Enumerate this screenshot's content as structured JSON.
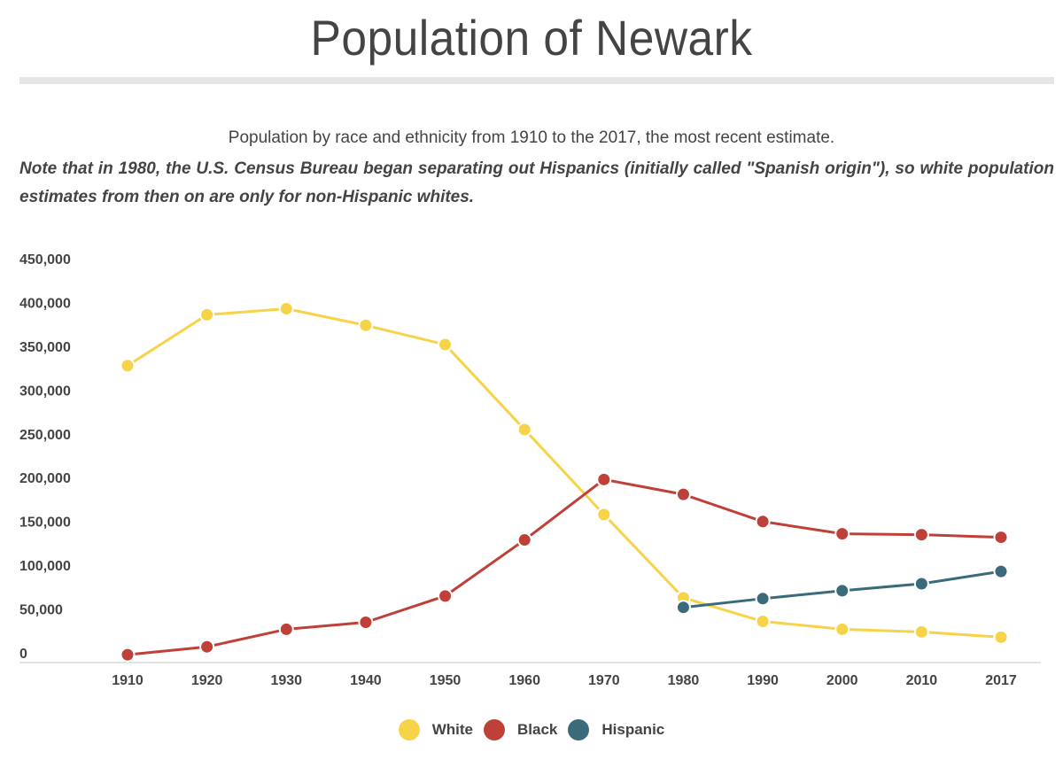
{
  "header": {
    "title": "Population of Newark",
    "subtitle": "Population by race and ethnicity from 1910 to the 2017, the most recent estimate.",
    "note": "Note that in 1980, the U.S. Census Bureau began separating out Hispanics (initially called \"Spanish origin\"), so white population estimates from then on are only for non-Hispanic whites."
  },
  "chart_data": {
    "type": "line",
    "title": "Population of Newark",
    "xlabel": "",
    "ylabel": "",
    "categories": [
      "1910",
      "1920",
      "1930",
      "1940",
      "1950",
      "1960",
      "1970",
      "1980",
      "1990",
      "2000",
      "2010",
      "2017"
    ],
    "ylim": [
      0,
      450000
    ],
    "y_ticks": [
      0,
      50000,
      100000,
      150000,
      200000,
      250000,
      300000,
      350000,
      400000,
      450000
    ],
    "y_tick_labels": [
      "0",
      "50,000",
      "100,000",
      "150,000",
      "200,000",
      "250,000",
      "300,000",
      "350,000",
      "400,000",
      "450,000"
    ],
    "grid": false,
    "legend_position": "bottom-center",
    "series": [
      {
        "name": "White",
        "color": "#F6D348",
        "values": [
          339000,
          397000,
          404000,
          385000,
          363000,
          266000,
          169000,
          74000,
          47000,
          38000,
          35000,
          29000
        ]
      },
      {
        "name": "Black",
        "color": "#BF4039",
        "values": [
          9000,
          18000,
          38000,
          46000,
          76000,
          140000,
          209000,
          192000,
          161000,
          147000,
          146000,
          143000
        ]
      },
      {
        "name": "Hispanic",
        "color": "#3B6B7A",
        "values": [
          null,
          null,
          null,
          null,
          null,
          null,
          null,
          63000,
          73000,
          82000,
          90000,
          104000
        ]
      }
    ]
  }
}
